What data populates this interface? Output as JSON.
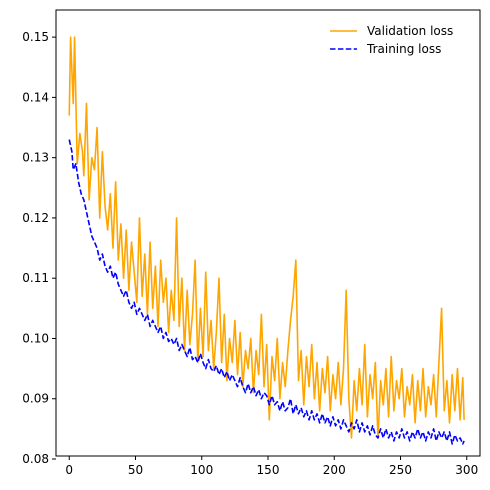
{
  "chart_data": {
    "type": "line",
    "xlim": [
      -10,
      310
    ],
    "ylim": [
      0.0805,
      0.1545
    ],
    "x_ticks": [
      0,
      50,
      100,
      150,
      200,
      250,
      300
    ],
    "y_ticks": [
      0.08,
      0.09,
      0.1,
      0.11,
      0.12,
      0.13,
      0.14,
      0.15
    ],
    "grid": false,
    "legend_position": "top-right",
    "series": [
      {
        "name": "Validation loss",
        "color": "#ffa500",
        "style": "solid",
        "points": [
          [
            0,
            0.137
          ],
          [
            1,
            0.15
          ],
          [
            3,
            0.139
          ],
          [
            4,
            0.15
          ],
          [
            6,
            0.129
          ],
          [
            8,
            0.134
          ],
          [
            10,
            0.131
          ],
          [
            11,
            0.127
          ],
          [
            13,
            0.139
          ],
          [
            15,
            0.123
          ],
          [
            17,
            0.13
          ],
          [
            19,
            0.128
          ],
          [
            21,
            0.135
          ],
          [
            23,
            0.12
          ],
          [
            25,
            0.131
          ],
          [
            27,
            0.122
          ],
          [
            29,
            0.118
          ],
          [
            31,
            0.124
          ],
          [
            33,
            0.115
          ],
          [
            35,
            0.126
          ],
          [
            37,
            0.113
          ],
          [
            39,
            0.119
          ],
          [
            41,
            0.11
          ],
          [
            43,
            0.118
          ],
          [
            45,
            0.108
          ],
          [
            47,
            0.116
          ],
          [
            49,
            0.111
          ],
          [
            51,
            0.106
          ],
          [
            53,
            0.12
          ],
          [
            55,
            0.107
          ],
          [
            57,
            0.114
          ],
          [
            59,
            0.104
          ],
          [
            61,
            0.116
          ],
          [
            63,
            0.105
          ],
          [
            65,
            0.112
          ],
          [
            67,
            0.102
          ],
          [
            69,
            0.113
          ],
          [
            71,
            0.106
          ],
          [
            73,
            0.11
          ],
          [
            75,
            0.101
          ],
          [
            77,
            0.108
          ],
          [
            79,
            0.103
          ],
          [
            81,
            0.12
          ],
          [
            83,
            0.102
          ],
          [
            85,
            0.11
          ],
          [
            87,
            0.098
          ],
          [
            89,
            0.108
          ],
          [
            91,
            0.099
          ],
          [
            93,
            0.104
          ],
          [
            95,
            0.113
          ],
          [
            97,
            0.096
          ],
          [
            99,
            0.105
          ],
          [
            101,
            0.097
          ],
          [
            103,
            0.111
          ],
          [
            105,
            0.098
          ],
          [
            107,
            0.103
          ],
          [
            109,
            0.095
          ],
          [
            111,
            0.101
          ],
          [
            113,
            0.11
          ],
          [
            115,
            0.096
          ],
          [
            117,
            0.104
          ],
          [
            119,
            0.093
          ],
          [
            121,
            0.1
          ],
          [
            123,
            0.096
          ],
          [
            125,
            0.103
          ],
          [
            127,
            0.094
          ],
          [
            129,
            0.101
          ],
          [
            131,
            0.092
          ],
          [
            133,
            0.098
          ],
          [
            135,
            0.095
          ],
          [
            137,
            0.1
          ],
          [
            139,
            0.091
          ],
          [
            141,
            0.098
          ],
          [
            143,
            0.094
          ],
          [
            145,
            0.104
          ],
          [
            147,
            0.092
          ],
          [
            149,
            0.099
          ],
          [
            151,
            0.0865
          ],
          [
            153,
            0.097
          ],
          [
            155,
            0.093
          ],
          [
            157,
            0.1
          ],
          [
            159,
            0.09
          ],
          [
            161,
            0.096
          ],
          [
            163,
            0.092
          ],
          [
            165,
            0.098
          ],
          [
            167,
            0.103
          ],
          [
            169,
            0.107
          ],
          [
            171,
            0.113
          ],
          [
            173,
            0.093
          ],
          [
            175,
            0.098
          ],
          [
            177,
            0.089
          ],
          [
            179,
            0.097
          ],
          [
            181,
            0.092
          ],
          [
            183,
            0.099
          ],
          [
            185,
            0.09
          ],
          [
            187,
            0.096
          ],
          [
            189,
            0.088
          ],
          [
            191,
            0.095
          ],
          [
            193,
            0.091
          ],
          [
            195,
            0.097
          ],
          [
            197,
            0.088
          ],
          [
            199,
            0.094
          ],
          [
            201,
            0.09
          ],
          [
            203,
            0.096
          ],
          [
            205,
            0.089
          ],
          [
            207,
            0.095
          ],
          [
            209,
            0.108
          ],
          [
            211,
            0.09
          ],
          [
            213,
            0.0835
          ],
          [
            215,
            0.093
          ],
          [
            217,
            0.088
          ],
          [
            219,
            0.095
          ],
          [
            221,
            0.089
          ],
          [
            223,
            0.099
          ],
          [
            225,
            0.087
          ],
          [
            227,
            0.094
          ],
          [
            229,
            0.09
          ],
          [
            231,
            0.096
          ],
          [
            233,
            0.0835
          ],
          [
            235,
            0.093
          ],
          [
            237,
            0.089
          ],
          [
            239,
            0.095
          ],
          [
            241,
            0.087
          ],
          [
            243,
            0.097
          ],
          [
            245,
            0.088
          ],
          [
            247,
            0.093
          ],
          [
            249,
            0.09
          ],
          [
            251,
            0.095
          ],
          [
            253,
            0.087
          ],
          [
            255,
            0.092
          ],
          [
            257,
            0.089
          ],
          [
            259,
            0.094
          ],
          [
            261,
            0.086
          ],
          [
            263,
            0.093
          ],
          [
            265,
            0.088
          ],
          [
            267,
            0.095
          ],
          [
            269,
            0.087
          ],
          [
            271,
            0.092
          ],
          [
            273,
            0.089
          ],
          [
            275,
            0.094
          ],
          [
            277,
            0.087
          ],
          [
            279,
            0.096
          ],
          [
            281,
            0.105
          ],
          [
            283,
            0.088
          ],
          [
            285,
            0.093
          ],
          [
            287,
            0.086
          ],
          [
            289,
            0.094
          ],
          [
            291,
            0.088
          ],
          [
            293,
            0.095
          ],
          [
            295,
            0.0865
          ],
          [
            297,
            0.0935
          ],
          [
            298,
            0.0865
          ]
        ]
      },
      {
        "name": "Training loss",
        "color": "#0000ff",
        "style": "dashed",
        "points": [
          [
            0,
            0.133
          ],
          [
            2,
            0.131
          ],
          [
            3,
            0.128
          ],
          [
            5,
            0.129
          ],
          [
            7,
            0.126
          ],
          [
            9,
            0.124
          ],
          [
            11,
            0.123
          ],
          [
            13,
            0.121
          ],
          [
            15,
            0.119
          ],
          [
            17,
            0.117
          ],
          [
            19,
            0.116
          ],
          [
            21,
            0.115
          ],
          [
            23,
            0.113
          ],
          [
            25,
            0.114
          ],
          [
            27,
            0.112
          ],
          [
            29,
            0.111
          ],
          [
            31,
            0.112
          ],
          [
            33,
            0.11
          ],
          [
            35,
            0.111
          ],
          [
            37,
            0.109
          ],
          [
            39,
            0.108
          ],
          [
            41,
            0.107
          ],
          [
            43,
            0.108
          ],
          [
            45,
            0.106
          ],
          [
            47,
            0.105
          ],
          [
            49,
            0.106
          ],
          [
            51,
            0.104
          ],
          [
            53,
            0.105
          ],
          [
            55,
            0.104
          ],
          [
            57,
            0.103
          ],
          [
            59,
            0.104
          ],
          [
            61,
            0.102
          ],
          [
            63,
            0.103
          ],
          [
            65,
            0.102
          ],
          [
            67,
            0.101
          ],
          [
            69,
            0.102
          ],
          [
            71,
            0.1
          ],
          [
            73,
            0.101
          ],
          [
            75,
            0.0995
          ],
          [
            77,
            0.1
          ],
          [
            79,
            0.099
          ],
          [
            81,
            0.1
          ],
          [
            83,
            0.098
          ],
          [
            85,
            0.099
          ],
          [
            87,
            0.098
          ],
          [
            89,
            0.097
          ],
          [
            91,
            0.0985
          ],
          [
            93,
            0.0965
          ],
          [
            95,
            0.097
          ],
          [
            97,
            0.096
          ],
          [
            99,
            0.0975
          ],
          [
            101,
            0.096
          ],
          [
            103,
            0.095
          ],
          [
            105,
            0.0965
          ],
          [
            107,
            0.095
          ],
          [
            109,
            0.0945
          ],
          [
            111,
            0.0955
          ],
          [
            113,
            0.094
          ],
          [
            115,
            0.095
          ],
          [
            117,
            0.0935
          ],
          [
            119,
            0.0945
          ],
          [
            121,
            0.093
          ],
          [
            123,
            0.094
          ],
          [
            125,
            0.093
          ],
          [
            127,
            0.092
          ],
          [
            129,
            0.0935
          ],
          [
            131,
            0.092
          ],
          [
            133,
            0.091
          ],
          [
            135,
            0.0925
          ],
          [
            137,
            0.091
          ],
          [
            139,
            0.092
          ],
          [
            141,
            0.0905
          ],
          [
            143,
            0.0915
          ],
          [
            145,
            0.09
          ],
          [
            147,
            0.091
          ],
          [
            149,
            0.0905
          ],
          [
            151,
            0.089
          ],
          [
            153,
            0.0905
          ],
          [
            155,
            0.089
          ],
          [
            157,
            0.0895
          ],
          [
            159,
            0.088
          ],
          [
            161,
            0.0895
          ],
          [
            163,
            0.088
          ],
          [
            165,
            0.0885
          ],
          [
            167,
            0.09
          ],
          [
            169,
            0.0875
          ],
          [
            171,
            0.089
          ],
          [
            173,
            0.0875
          ],
          [
            175,
            0.0885
          ],
          [
            177,
            0.087
          ],
          [
            179,
            0.088
          ],
          [
            181,
            0.0865
          ],
          [
            183,
            0.088
          ],
          [
            185,
            0.0865
          ],
          [
            187,
            0.0875
          ],
          [
            189,
            0.086
          ],
          [
            191,
            0.0875
          ],
          [
            193,
            0.086
          ],
          [
            195,
            0.087
          ],
          [
            197,
            0.0855
          ],
          [
            199,
            0.087
          ],
          [
            201,
            0.0855
          ],
          [
            203,
            0.0865
          ],
          [
            205,
            0.085
          ],
          [
            207,
            0.0865
          ],
          [
            209,
            0.0855
          ],
          [
            211,
            0.0845
          ],
          [
            213,
            0.086
          ],
          [
            215,
            0.085
          ],
          [
            217,
            0.0865
          ],
          [
            219,
            0.0845
          ],
          [
            221,
            0.086
          ],
          [
            223,
            0.0845
          ],
          [
            225,
            0.0855
          ],
          [
            227,
            0.084
          ],
          [
            229,
            0.0855
          ],
          [
            231,
            0.084
          ],
          [
            233,
            0.0835
          ],
          [
            235,
            0.085
          ],
          [
            237,
            0.0835
          ],
          [
            239,
            0.085
          ],
          [
            241,
            0.0835
          ],
          [
            243,
            0.0845
          ],
          [
            245,
            0.083
          ],
          [
            247,
            0.0845
          ],
          [
            249,
            0.0835
          ],
          [
            251,
            0.085
          ],
          [
            253,
            0.0835
          ],
          [
            255,
            0.0845
          ],
          [
            257,
            0.083
          ],
          [
            259,
            0.0845
          ],
          [
            261,
            0.0835
          ],
          [
            263,
            0.085
          ],
          [
            265,
            0.0835
          ],
          [
            267,
            0.0845
          ],
          [
            269,
            0.083
          ],
          [
            271,
            0.0845
          ],
          [
            273,
            0.0835
          ],
          [
            275,
            0.085
          ],
          [
            277,
            0.083
          ],
          [
            279,
            0.0845
          ],
          [
            281,
            0.0835
          ],
          [
            283,
            0.0845
          ],
          [
            285,
            0.083
          ],
          [
            287,
            0.0845
          ],
          [
            289,
            0.0825
          ],
          [
            291,
            0.084
          ],
          [
            293,
            0.083
          ],
          [
            295,
            0.0835
          ],
          [
            297,
            0.0825
          ],
          [
            298,
            0.083
          ]
        ]
      }
    ]
  }
}
